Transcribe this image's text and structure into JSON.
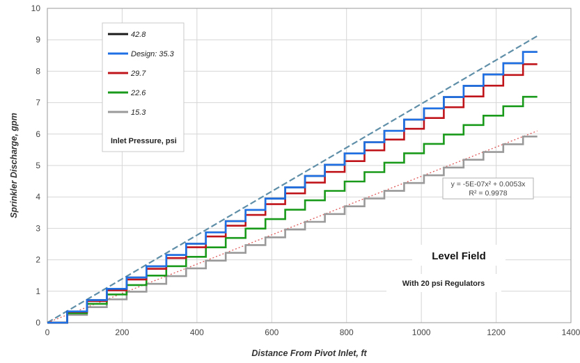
{
  "chart_data": {
    "type": "line",
    "title": "",
    "xlabel": "Distance From Pivot Inlet, ft",
    "ylabel": "Sprinkler Discharge, gpm",
    "xlim": [
      0,
      1400
    ],
    "ylim": [
      0,
      10
    ],
    "x_ticks": [
      "0",
      "200",
      "400",
      "600",
      "800",
      "1000",
      "1200",
      "1400"
    ],
    "y_ticks": [
      "0",
      "1",
      "2",
      "3",
      "4",
      "5",
      "6",
      "7",
      "8",
      "9",
      "10"
    ],
    "grid": true,
    "legend_title": "Inlet Pressure, psi",
    "legend_position": "top-left",
    "stair_step_ft": 53,
    "series": [
      {
        "name": "42.8",
        "color": "#1a1a1a",
        "end_x": 1310,
        "end_y": 8.87
      },
      {
        "name": "Design: 35.3",
        "color": "#1f6fe5",
        "end_x": 1310,
        "end_y": 8.87
      },
      {
        "name": "29.7",
        "color": "#c0141b",
        "end_x": 1310,
        "end_y": 8.47
      },
      {
        "name": "22.6",
        "color": "#1a9a1a",
        "end_x": 1310,
        "end_y": 7.4
      },
      {
        "name": "15.3",
        "color": "#9a9a9a",
        "end_x": 1310,
        "end_y": 6.1
      }
    ],
    "trendline_upper": {
      "color": "#5f8fa8",
      "points": [
        [
          0,
          0
        ],
        [
          1310,
          9.12
        ]
      ]
    },
    "trendline_lower": {
      "color": "#e06060",
      "points": [
        [
          0,
          0
        ],
        [
          1310,
          6.1
        ]
      ]
    },
    "annotation": {
      "equation": "y = -5E-07x² + 0.0053x",
      "r2": "R² = 0.9978"
    },
    "condition": {
      "title": "Level Field",
      "subtitle": "With 20 psi Regulators"
    }
  }
}
